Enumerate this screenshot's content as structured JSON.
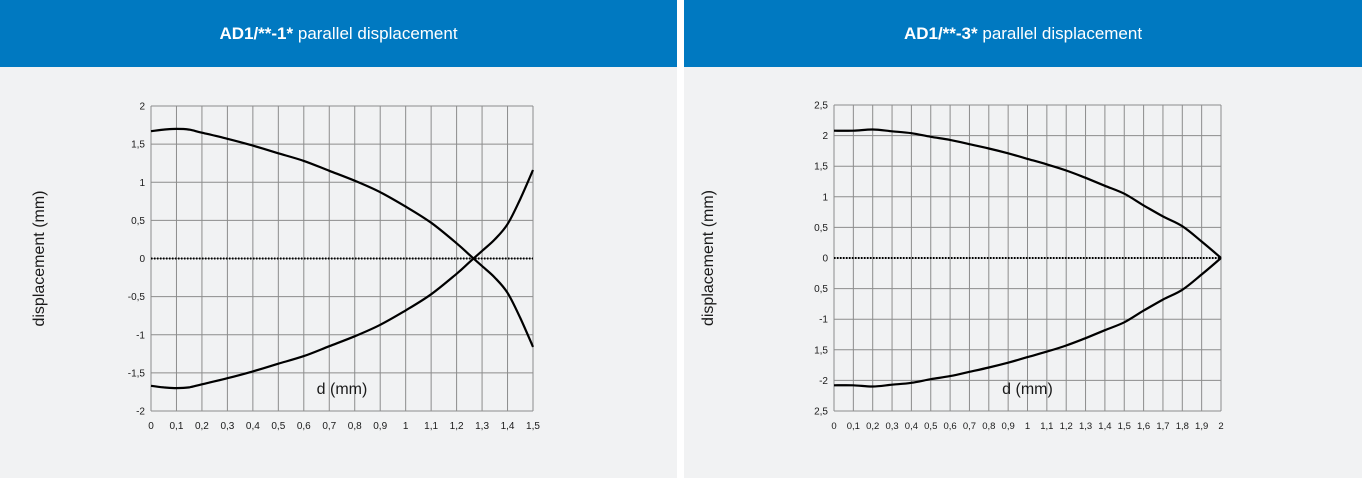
{
  "chart_data": [
    {
      "type": "line",
      "title_bold": "AD1/**-1*",
      "title_rest": " parallel displacement",
      "xlabel": "d (mm)",
      "ylabel": "displacement (mm)",
      "xlim": [
        0,
        1.5
      ],
      "ylim": [
        -2,
        2
      ],
      "x_ticks": [
        "0",
        "0,1",
        "0,2",
        "0,3",
        "0,4",
        "0,5",
        "0,6",
        "0,7",
        "0,8",
        "0,9",
        "1",
        "1,1",
        "1,2",
        "1,3",
        "1,4",
        "1,5"
      ],
      "y_ticks": [
        "2",
        "1,5",
        "1",
        "0,5",
        "0",
        "-0,5",
        "-1",
        "-1,5",
        "-2"
      ],
      "grid": true,
      "series": [
        {
          "x": [
            0,
            0.05,
            0.1,
            0.15,
            0.2,
            0.3,
            0.4,
            0.5,
            0.6,
            0.7,
            0.8,
            0.9,
            1.0,
            1.1,
            1.2,
            1.25,
            1.3,
            1.35,
            1.4,
            1.45,
            1.5
          ],
          "y": [
            1.67,
            1.69,
            1.7,
            1.69,
            1.65,
            1.57,
            1.48,
            1.38,
            1.28,
            1.15,
            1.02,
            0.87,
            0.68,
            0.47,
            0.2,
            0.05,
            -0.1,
            -0.25,
            -0.45,
            -0.78,
            -1.16
          ]
        },
        {
          "x": [
            0,
            0.05,
            0.1,
            0.15,
            0.2,
            0.3,
            0.4,
            0.5,
            0.6,
            0.7,
            0.8,
            0.9,
            1.0,
            1.1,
            1.2,
            1.25,
            1.3,
            1.35,
            1.4,
            1.45,
            1.5
          ],
          "y": [
            -1.67,
            -1.69,
            -1.7,
            -1.69,
            -1.65,
            -1.57,
            -1.48,
            -1.38,
            -1.28,
            -1.15,
            -1.02,
            -0.87,
            -0.68,
            -0.47,
            -0.2,
            -0.05,
            0.1,
            0.25,
            0.45,
            0.78,
            1.16
          ]
        }
      ]
    },
    {
      "type": "line",
      "title_bold": "AD1/**-3*",
      "title_rest": " parallel displacement",
      "xlabel": "d (mm)",
      "ylabel": "displacement (mm)",
      "xlim": [
        0,
        2
      ],
      "ylim": [
        -2.5,
        2.5
      ],
      "x_ticks": [
        "0",
        "0,1",
        "0,2",
        "0,3",
        "0,4",
        "0,5",
        "0,6",
        "0,7",
        "0,8",
        "0,9",
        "1",
        "1,1",
        "1,2",
        "1,3",
        "1,4",
        "1,5",
        "1,6",
        "1,7",
        "1,8",
        "1,9",
        "2"
      ],
      "y_ticks": [
        "2,5",
        "2",
        "1,5",
        "1",
        "0,5",
        "0",
        "0,5",
        "-1",
        "1,5",
        "-2",
        "2,5"
      ],
      "grid": true,
      "series": [
        {
          "x": [
            0,
            0.1,
            0.2,
            0.3,
            0.4,
            0.5,
            0.6,
            0.7,
            0.8,
            0.9,
            1.0,
            1.1,
            1.2,
            1.3,
            1.4,
            1.5,
            1.6,
            1.7,
            1.8,
            1.9,
            2.0
          ],
          "y": [
            2.08,
            2.08,
            2.1,
            2.07,
            2.04,
            1.98,
            1.93,
            1.86,
            1.79,
            1.71,
            1.62,
            1.53,
            1.43,
            1.31,
            1.18,
            1.05,
            0.86,
            0.68,
            0.52,
            0.27,
            0.0
          ]
        },
        {
          "x": [
            0,
            0.1,
            0.2,
            0.3,
            0.4,
            0.5,
            0.6,
            0.7,
            0.8,
            0.9,
            1.0,
            1.1,
            1.2,
            1.3,
            1.4,
            1.5,
            1.6,
            1.7,
            1.8,
            1.9,
            2.0
          ],
          "y": [
            -2.08,
            -2.08,
            -2.1,
            -2.07,
            -2.04,
            -1.98,
            -1.93,
            -1.86,
            -1.79,
            -1.71,
            -1.62,
            -1.53,
            -1.43,
            -1.31,
            -1.18,
            -1.05,
            -0.86,
            -0.68,
            -0.52,
            -0.27,
            0.0
          ]
        }
      ]
    }
  ],
  "colors": {
    "header_bg": "#0079c1",
    "header_text": "#ffffff",
    "panel_bg": "#f1f2f3",
    "grid": "#8c8c8c",
    "curve": "#000000"
  }
}
